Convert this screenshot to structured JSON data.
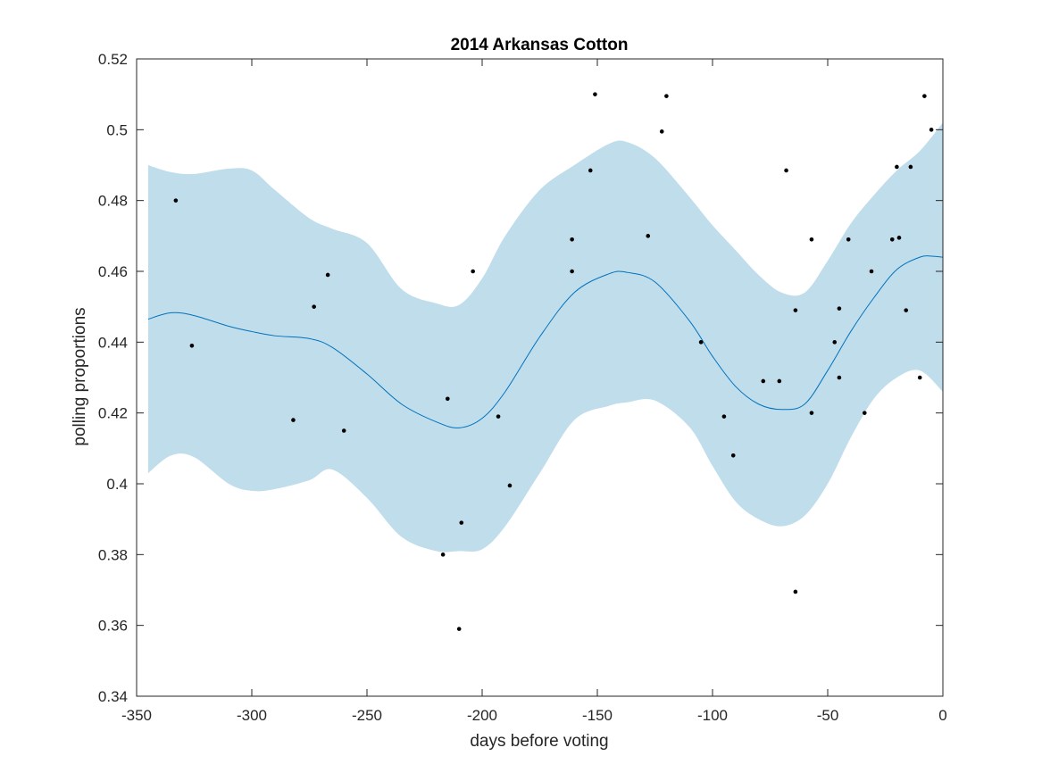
{
  "chart_data": {
    "type": "line",
    "title": "2014 Arkansas Cotton",
    "xlabel": "days before voting",
    "ylabel": "polling proportions",
    "xlim": [
      -350,
      0
    ],
    "ylim": [
      0.34,
      0.52
    ],
    "grid": false,
    "xticks": [
      "-350",
      "-300",
      "-250",
      "-200",
      "-150",
      "-100",
      "-50",
      "0"
    ],
    "yticks": [
      "0.34",
      "0.36",
      "0.38",
      "0.4",
      "0.42",
      "0.44",
      "0.46",
      "0.48",
      "0.5",
      "0.52"
    ],
    "colors": {
      "band": "#c0ddeb",
      "mean_line": "#0072bd",
      "points": "#000000"
    },
    "series": [
      {
        "type": "area-band",
        "x": [
          -345,
          -335,
          -325,
          -310,
          -300,
          -290,
          -275,
          -265,
          -250,
          -235,
          -220,
          -210,
          -200,
          -190,
          -175,
          -160,
          -145,
          -137,
          -125,
          -110,
          -100,
          -90,
          -80,
          -70,
          -60,
          -50,
          -40,
          -30,
          -20,
          -10,
          0
        ],
        "upper": [
          0.49,
          0.488,
          0.4875,
          0.489,
          0.4885,
          0.483,
          0.475,
          0.472,
          0.468,
          0.455,
          0.451,
          0.4505,
          0.458,
          0.47,
          0.483,
          0.49,
          0.496,
          0.4965,
          0.492,
          0.481,
          0.473,
          0.466,
          0.459,
          0.454,
          0.454,
          0.463,
          0.4735,
          0.4815,
          0.4885,
          0.494,
          0.502
        ],
        "lower": [
          0.403,
          0.408,
          0.4075,
          0.4,
          0.398,
          0.3985,
          0.401,
          0.404,
          0.396,
          0.385,
          0.381,
          0.381,
          0.3815,
          0.388,
          0.403,
          0.418,
          0.422,
          0.423,
          0.4235,
          0.416,
          0.405,
          0.395,
          0.39,
          0.388,
          0.391,
          0.4,
          0.413,
          0.424,
          0.43,
          0.432,
          0.426
        ]
      },
      {
        "type": "line",
        "x": [
          -345,
          -335,
          -325,
          -310,
          -300,
          -290,
          -275,
          -265,
          -250,
          -235,
          -220,
          -210,
          -200,
          -190,
          -175,
          -160,
          -145,
          -137,
          -125,
          -110,
          -100,
          -90,
          -80,
          -70,
          -60,
          -50,
          -40,
          -30,
          -20,
          -10,
          -5,
          0
        ],
        "y": [
          0.4465,
          0.4483,
          0.4475,
          0.4445,
          0.443,
          0.4418,
          0.441,
          0.4385,
          0.431,
          0.4225,
          0.4175,
          0.4158,
          0.4185,
          0.426,
          0.4415,
          0.454,
          0.4593,
          0.4597,
          0.457,
          0.446,
          0.436,
          0.4275,
          0.4225,
          0.421,
          0.4225,
          0.432,
          0.443,
          0.4525,
          0.4605,
          0.464,
          0.4643,
          0.464
        ]
      },
      {
        "type": "scatter",
        "points": [
          [
            -333,
            0.48
          ],
          [
            -326,
            0.439
          ],
          [
            -282,
            0.418
          ],
          [
            -273,
            0.45
          ],
          [
            -267,
            0.459
          ],
          [
            -260,
            0.415
          ],
          [
            -217,
            0.38
          ],
          [
            -215,
            0.424
          ],
          [
            -210,
            0.359
          ],
          [
            -209,
            0.389
          ],
          [
            -204,
            0.46
          ],
          [
            -193,
            0.419
          ],
          [
            -188,
            0.3995
          ],
          [
            -161,
            0.469
          ],
          [
            -161,
            0.46
          ],
          [
            -153,
            0.4885
          ],
          [
            -151,
            0.51
          ],
          [
            -128,
            0.47
          ],
          [
            -122,
            0.4995
          ],
          [
            -120,
            0.5095
          ],
          [
            -105,
            0.44
          ],
          [
            -95,
            0.419
          ],
          [
            -91,
            0.408
          ],
          [
            -78,
            0.429
          ],
          [
            -71,
            0.429
          ],
          [
            -68,
            0.4885
          ],
          [
            -64,
            0.449
          ],
          [
            -64,
            0.3695
          ],
          [
            -57,
            0.469
          ],
          [
            -57,
            0.42
          ],
          [
            -47,
            0.44
          ],
          [
            -45,
            0.4495
          ],
          [
            -45,
            0.43
          ],
          [
            -41,
            0.469
          ],
          [
            -34,
            0.42
          ],
          [
            -31,
            0.46
          ],
          [
            -22,
            0.469
          ],
          [
            -20,
            0.4895
          ],
          [
            -19,
            0.4695
          ],
          [
            -16,
            0.449
          ],
          [
            -14,
            0.4895
          ],
          [
            -10,
            0.43
          ],
          [
            -8,
            0.5095
          ],
          [
            -5,
            0.5
          ]
        ]
      }
    ]
  }
}
